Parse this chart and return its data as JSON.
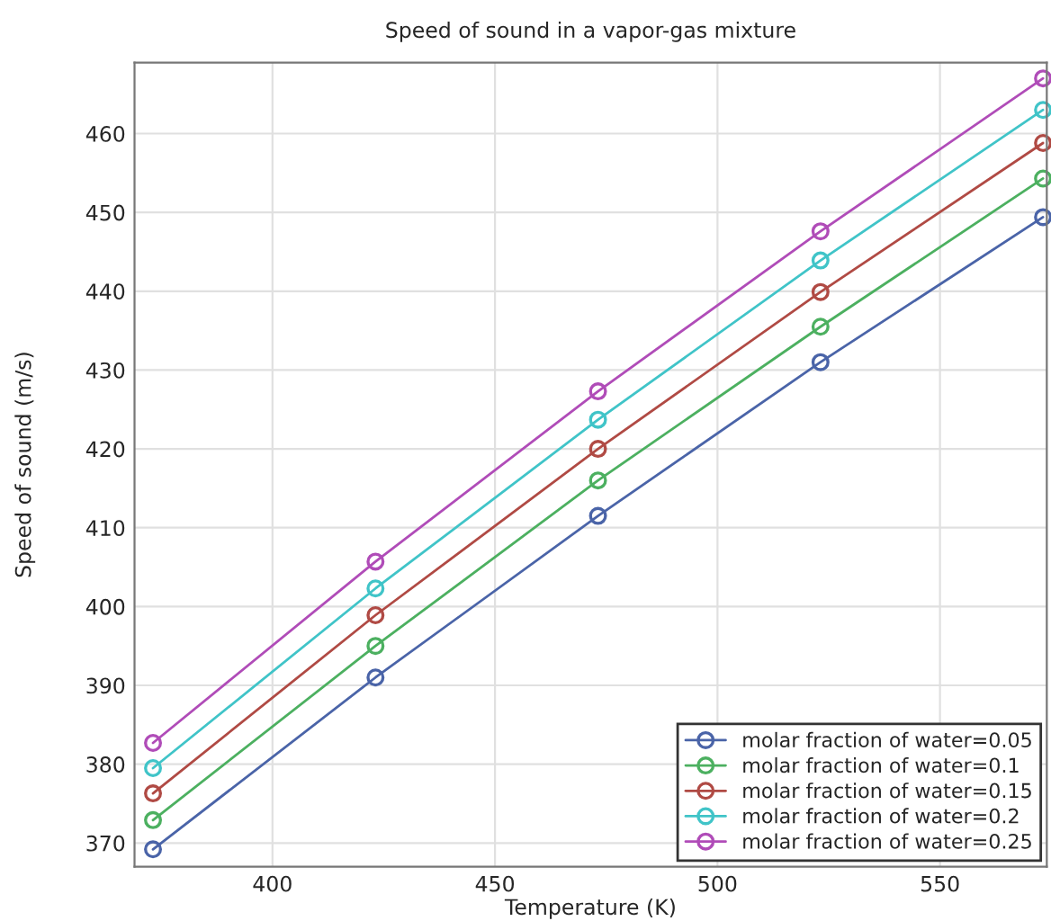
{
  "chart_data": {
    "type": "line",
    "title": "Speed of sound in a vapor-gas mixture",
    "xlabel": "Temperature (K)",
    "ylabel": "Speed of sound (m/s)",
    "x": [
      373.15,
      423.15,
      473.15,
      523.15,
      573.15
    ],
    "series": [
      {
        "name": "molar fraction of water=0.05",
        "color": "#4a64a8",
        "values": [
          369.2,
          391.0,
          411.5,
          431.0,
          449.4
        ]
      },
      {
        "name": "molar fraction of water=0.1",
        "color": "#4cb060",
        "values": [
          372.9,
          395.0,
          416.0,
          435.5,
          454.3
        ]
      },
      {
        "name": "molar fraction of water=0.15",
        "color": "#b04a44",
        "values": [
          376.3,
          398.9,
          420.0,
          439.9,
          458.8
        ]
      },
      {
        "name": "molar fraction of water=0.2",
        "color": "#40c4c8",
        "values": [
          379.5,
          402.3,
          423.7,
          443.9,
          463.0
        ]
      },
      {
        "name": "molar fraction of water=0.25",
        "color": "#b04cb8",
        "values": [
          382.7,
          405.7,
          427.3,
          447.6,
          467.0
        ]
      }
    ],
    "xlim": [
      369,
      574
    ],
    "xticks": [
      400,
      450,
      500,
      550
    ],
    "ylim": [
      367,
      469
    ],
    "yticks": [
      370,
      380,
      390,
      400,
      410,
      420,
      430,
      440,
      450,
      460
    ],
    "grid": true,
    "legend": "bottom right",
    "marker": "circle",
    "line_style": "solid"
  }
}
